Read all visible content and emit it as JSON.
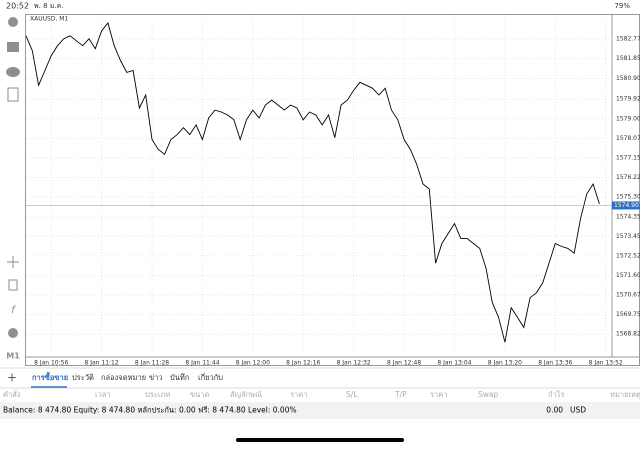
{
  "status_bar": {
    "time": "20:52",
    "date": "พ. 8 ม.ค.",
    "battery": "79%"
  },
  "chart_data": {
    "type": "line",
    "title": "XAUUSD, M1",
    "color": "#000000",
    "values": [
      1582.92,
      1582.22,
      1580.58,
      1581.28,
      1581.98,
      1582.45,
      1582.78,
      1582.92,
      1582.68,
      1582.45,
      1582.78,
      1582.31,
      1583.15,
      1583.52,
      1582.45,
      1581.75,
      1581.19,
      1581.28,
      1579.51,
      1580.12,
      1578.02,
      1577.55,
      1577.32,
      1578.02,
      1578.25,
      1578.58,
      1578.25,
      1578.71,
      1578.02,
      1579.04,
      1579.41,
      1579.32,
      1579.18,
      1578.95,
      1578.02,
      1578.95,
      1579.41,
      1579.04,
      1579.65,
      1579.88,
      1579.65,
      1579.41,
      1579.65,
      1579.51,
      1578.95,
      1579.32,
      1579.18,
      1578.71,
      1579.18,
      1578.11,
      1579.65,
      1579.88,
      1580.35,
      1580.72,
      1580.58,
      1580.44,
      1580.12,
      1580.44,
      1579.41,
      1578.95,
      1578.02,
      1577.55,
      1576.85,
      1575.92,
      1575.68,
      1572.18,
      1573.11,
      1573.58,
      1574.05,
      1573.35,
      1573.35,
      1573.11,
      1572.88,
      1571.95,
      1570.32,
      1569.62,
      1568.45,
      1570.08,
      1569.62,
      1569.15,
      1570.55,
      1570.78,
      1571.25,
      1572.18,
      1573.11,
      1572.97,
      1572.88,
      1572.65,
      1574.28,
      1575.45,
      1575.92,
      1574.98
    ],
    "xlim": [
      0,
      93
    ],
    "xticks": [
      {
        "value": 4,
        "label": "8 Jan 10:56"
      },
      {
        "value": 12,
        "label": "8 Jan 11:12"
      },
      {
        "value": 20,
        "label": "8 Jan 11:28"
      },
      {
        "value": 28,
        "label": "8 Jan 11:44"
      },
      {
        "value": 36,
        "label": "8 Jan 12:00"
      },
      {
        "value": 44,
        "label": "8 Jan 12:16"
      },
      {
        "value": 52,
        "label": "8 Jan 12:32"
      },
      {
        "value": 60,
        "label": "8 Jan 12:48"
      },
      {
        "value": 68,
        "label": "8 Jan 13:04"
      },
      {
        "value": 76,
        "label": "8 Jan 13:20"
      },
      {
        "value": 84,
        "label": "8 Jan 13:36"
      },
      {
        "value": 92,
        "label": "8 Jan 13:52"
      }
    ],
    "ylim": [
      1567.75,
      1583.9
    ],
    "yticks": [
      1582.775,
      {
        "value": 1581.85,
        "label": "1581.850"
      },
      {
        "value": 1580.9,
        "label": "1580.900"
      },
      1579.925,
      {
        "value": 1579,
        "label": "1579.000"
      },
      1578.075,
      {
        "value": 1577.15,
        "label": "1577.150"
      },
      1576.225,
      {
        "value": 1575.3,
        "label": "1575.300"
      },
      {
        "value": 1574.35,
        "label": "1574.350"
      },
      {
        "value": 1573.45,
        "label": "1573.450"
      },
      1572.525,
      {
        "value": 1571.6,
        "label": "1571.600"
      },
      1570.675,
      {
        "value": 1569.75,
        "label": "1569.750"
      },
      1568.825
    ],
    "current_price": 1574.907,
    "grid": true
  },
  "toolbar": {
    "timeframe": "M1"
  },
  "tabs": [
    "การซื้อขาย",
    "ประวัติ",
    "กล่องจดหมาย",
    "ข่าว",
    "บันทึก",
    "เกี่ยวกับ"
  ],
  "columns": [
    "คำสั่ง",
    "เวลา",
    "ประเภท",
    "ขนาด",
    "สัญลักษณ์",
    "ราคา",
    "S/L",
    "T/P",
    "ราคา",
    "Swap",
    "กำไร",
    "หมายเหตุ"
  ],
  "summary": {
    "text": "Balance: 8 474.80 Equity: 8 474.80 หลักประกัน: 0.00 ฟรี: 8 474.80 Level: 0.00%",
    "profit": "0.00",
    "currency": "USD"
  }
}
